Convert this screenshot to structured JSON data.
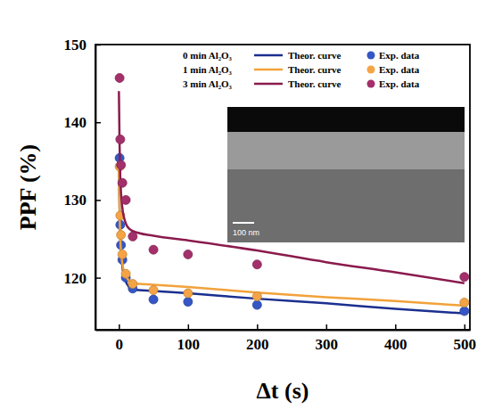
{
  "chart_data": {
    "type": "scatter",
    "x_label": "Δt (s)",
    "y_label": "PPF (%)",
    "xlim": [
      -34,
      508
    ],
    "ylim": [
      113.3,
      150
    ],
    "xticks": [
      0,
      100,
      200,
      300,
      400,
      500
    ],
    "yticks": [
      120,
      130,
      140,
      150
    ],
    "legend": "upper right",
    "annotations": [
      "100 nm"
    ],
    "series": [
      {
        "name": "Theor. curve",
        "group": "0 min Al₂O₃",
        "type": "line",
        "line_style": "solid",
        "color": "#1b2f8f",
        "x": [
          0,
          1,
          2,
          5,
          10,
          15,
          20,
          50,
          100,
          200,
          300,
          400,
          500
        ],
        "values": [
          135.5,
          129,
          125.5,
          121.5,
          119.5,
          118.8,
          118.5,
          118.3,
          118.0,
          117.3,
          116.7,
          116.0,
          115.4
        ]
      },
      {
        "name": "Exp. data",
        "group": "0 min Al₂O₃",
        "type": "scatter",
        "marker": "circle",
        "color": "#3556c4",
        "x": [
          1,
          2,
          3,
          5,
          10,
          20,
          50,
          100,
          200,
          500
        ],
        "values": [
          135.4,
          126.8,
          124.2,
          122.3,
          120,
          118.6,
          117.2,
          116.9,
          116.5,
          115.7
        ]
      },
      {
        "name": "Theor. curve",
        "group": "1 min Al₂O₃",
        "type": "line",
        "line_style": "solid",
        "color": "#f2a23a",
        "x": [
          0,
          1,
          2,
          5,
          10,
          15,
          20,
          50,
          100,
          200,
          300,
          400,
          500
        ],
        "values": [
          134,
          128.5,
          125,
          121.8,
          120.2,
          119.6,
          119.3,
          119.1,
          118.8,
          118.1,
          117.5,
          117.0,
          116.4
        ]
      },
      {
        "name": "Exp. data",
        "group": "1 min Al₂O₃",
        "type": "scatter",
        "marker": "circle",
        "color": "#f4a445",
        "x": [
          1,
          2,
          3,
          5,
          10,
          20,
          50,
          100,
          200,
          500
        ],
        "values": [
          134.3,
          128,
          125.5,
          123,
          120.5,
          119.2,
          118.4,
          118,
          117.6,
          116.8
        ]
      },
      {
        "name": "Theor. curve",
        "group": "3 min Al₂O₃",
        "type": "line",
        "line_style": "solid",
        "color": "#8a1b4d",
        "x": [
          0,
          1,
          2,
          5,
          10,
          15,
          20,
          50,
          100,
          200,
          300,
          400,
          500
        ],
        "values": [
          144,
          137,
          133,
          129,
          127,
          126.3,
          126,
          125.4,
          124.8,
          123.5,
          122.0,
          120.7,
          119.3
        ]
      },
      {
        "name": "Exp. data",
        "group": "3 min Al₂O₃",
        "type": "scatter",
        "marker": "circle",
        "color": "#a3306b",
        "x": [
          1,
          2,
          3,
          5,
          10,
          20,
          50,
          100,
          200,
          500
        ],
        "values": [
          145.7,
          137.8,
          134.5,
          132.2,
          130,
          125.3,
          123.6,
          123,
          121.7,
          120.1
        ]
      }
    ]
  }
}
